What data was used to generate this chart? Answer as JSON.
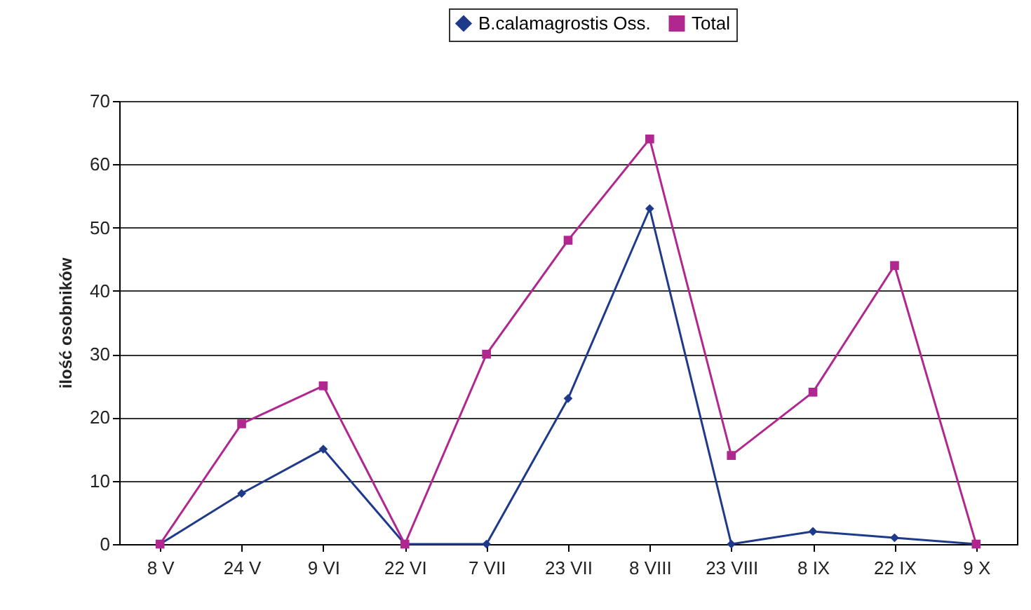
{
  "chart_data": {
    "type": "line",
    "ylabel": "ilość osobników",
    "categories": [
      "8 V",
      "24 V",
      "9 VI",
      "22 VI",
      "7 VII",
      "23 VII",
      "8 VIII",
      "23 VIII",
      "8 IX",
      "22 IX",
      "9 X"
    ],
    "series": [
      {
        "name": "B.calamagrostis Oss.",
        "color": "#1f3a8a",
        "marker": "diamond",
        "values": [
          0,
          8,
          15,
          0,
          0,
          23,
          53,
          0,
          2,
          1,
          0
        ]
      },
      {
        "name": "Total",
        "color": "#b0288f",
        "marker": "square",
        "values": [
          0,
          19,
          25,
          0,
          30,
          48,
          64,
          14,
          24,
          44,
          0
        ]
      }
    ],
    "ylim": [
      0,
      70
    ],
    "yticks": [
      0,
      10,
      20,
      30,
      40,
      50,
      60,
      70
    ],
    "grid": "y",
    "legend": "top"
  }
}
